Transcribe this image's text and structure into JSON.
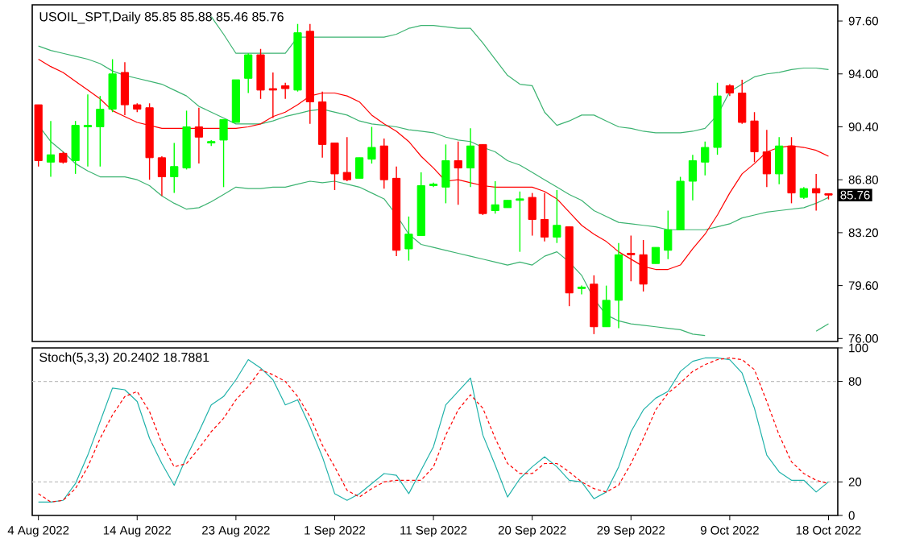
{
  "chart_data": [
    {
      "type": "candlestick",
      "title": "USOIL_SPT,Daily 85.85 85.88 85.46 85.76",
      "categories": [
        null,
        null,
        null,
        null,
        null,
        null,
        null,
        null,
        null,
        null,
        null,
        null,
        null,
        null,
        null,
        null,
        null,
        null,
        null,
        null,
        null,
        null,
        null,
        null,
        null,
        null,
        null,
        null,
        null,
        null,
        null,
        null,
        null,
        null,
        null,
        null,
        null,
        null,
        null,
        null,
        null,
        null,
        null,
        null,
        null,
        null,
        null,
        null,
        null,
        null,
        null,
        null,
        null,
        null,
        null,
        null,
        null,
        null,
        null,
        null,
        null,
        null,
        null,
        null,
        null
      ],
      "ohlc": [
        [
          91.9,
          91.9,
          87.7,
          88.1
        ],
        [
          88.0,
          90.8,
          87.0,
          88.5
        ],
        [
          88.6,
          88.7,
          87.9,
          88.0
        ],
        [
          88.1,
          90.8,
          87.2,
          90.5
        ],
        [
          90.4,
          92.6,
          87.7,
          90.5
        ],
        [
          90.4,
          92.5,
          87.7,
          91.6
        ],
        [
          91.6,
          95.0,
          91.4,
          94.0
        ],
        [
          94.1,
          94.8,
          91.2,
          91.9
        ],
        [
          91.9,
          92.0,
          91.4,
          91.6
        ],
        [
          91.7,
          92.0,
          86.8,
          88.3
        ],
        [
          88.3,
          88.4,
          85.7,
          87.0
        ],
        [
          87.0,
          89.3,
          85.9,
          87.7
        ],
        [
          87.6,
          91.5,
          87.5,
          90.4
        ],
        [
          90.4,
          91.7,
          87.9,
          89.7
        ],
        [
          89.3,
          89.5,
          89.1,
          89.4
        ],
        [
          89.5,
          90.9,
          86.3,
          90.9
        ],
        [
          90.7,
          93.6,
          90.7,
          93.6
        ],
        [
          93.7,
          95.4,
          92.7,
          95.3
        ],
        [
          95.3,
          95.7,
          92.3,
          92.9
        ],
        [
          93.0,
          94.1,
          91.0,
          92.9
        ],
        [
          93.2,
          93.4,
          92.3,
          93.0
        ],
        [
          92.9,
          97.4,
          92.8,
          96.8
        ],
        [
          96.9,
          97.4,
          90.6,
          92.1
        ],
        [
          92.1,
          92.8,
          88.3,
          89.2
        ],
        [
          89.3,
          89.3,
          86.1,
          87.2
        ],
        [
          87.3,
          89.7,
          86.7,
          86.8
        ],
        [
          86.9,
          88.3,
          86.9,
          88.3
        ],
        [
          88.2,
          90.4,
          87.9,
          89.0
        ],
        [
          89.1,
          89.6,
          86.2,
          86.8
        ],
        [
          86.9,
          87.7,
          81.6,
          82.0
        ],
        [
          82.1,
          84.3,
          81.3,
          83.1
        ],
        [
          83.0,
          87.3,
          83.0,
          86.4
        ],
        [
          86.4,
          86.6,
          86.3,
          86.5
        ],
        [
          86.3,
          89.2,
          85.2,
          88.1
        ],
        [
          88.1,
          89.4,
          85.1,
          87.6
        ],
        [
          87.6,
          90.3,
          86.3,
          89.1
        ],
        [
          89.2,
          89.2,
          84.4,
          84.5
        ],
        [
          84.7,
          86.7,
          84.5,
          85.1
        ],
        [
          84.9,
          85.4,
          84.9,
          85.4
        ],
        [
          85.4,
          86.0,
          81.9,
          85.5
        ],
        [
          85.6,
          85.9,
          83.0,
          84.1
        ],
        [
          84.1,
          85.9,
          82.6,
          82.9
        ],
        [
          82.9,
          86.1,
          82.5,
          83.7
        ],
        [
          83.6,
          83.6,
          78.2,
          79.1
        ],
        [
          79.4,
          79.6,
          79.0,
          79.5
        ],
        [
          79.7,
          80.3,
          76.3,
          76.8
        ],
        [
          76.8,
          79.6,
          76.8,
          78.6
        ],
        [
          78.6,
          82.5,
          76.7,
          81.7
        ],
        [
          81.8,
          83.0,
          79.9,
          81.7
        ],
        [
          81.7,
          82.7,
          79.2,
          79.7
        ],
        [
          81.1,
          82.2,
          81.1,
          82.2
        ],
        [
          82.0,
          84.7,
          81.4,
          83.4
        ],
        [
          83.4,
          87.0,
          83.4,
          86.7
        ],
        [
          86.7,
          88.5,
          85.4,
          88.1
        ],
        [
          88.0,
          89.4,
          87.1,
          89.0
        ],
        [
          89.0,
          93.4,
          88.5,
          92.5
        ],
        [
          93.2,
          93.3,
          92.5,
          92.7
        ],
        [
          92.7,
          93.6,
          90.6,
          90.7
        ],
        [
          90.8,
          91.4,
          88.0,
          88.7
        ],
        [
          88.7,
          90.2,
          86.3,
          87.2
        ],
        [
          87.2,
          89.7,
          86.5,
          89.1
        ],
        [
          89.1,
          89.7,
          85.2,
          85.9
        ],
        [
          85.6,
          86.3,
          85.5,
          86.2
        ],
        [
          86.2,
          87.2,
          84.7,
          85.9
        ],
        [
          85.85,
          85.88,
          85.46,
          85.76
        ]
      ],
      "colors": [
        "#ff0000",
        "#00ff00",
        "#ff0000",
        "#00ff00",
        "#00ff00",
        "#00ff00",
        "#00ff00",
        "#ff0000",
        "#ff0000",
        "#ff0000",
        "#ff0000",
        "#00ff00",
        "#00ff00",
        "#ff0000",
        "#00ff00",
        "#00ff00",
        "#00ff00",
        "#00ff00",
        "#ff0000",
        "#ff0000",
        "#ff0000",
        "#00ff00",
        "#ff0000",
        "#ff0000",
        "#ff0000",
        "#ff0000",
        "#00ff00",
        "#00ff00",
        "#ff0000",
        "#ff0000",
        "#00ff00",
        "#00ff00",
        "#00ff00",
        "#00ff00",
        "#ff0000",
        "#00ff00",
        "#ff0000",
        "#00ff00",
        "#00ff00",
        "#00ff00",
        "#ff0000",
        "#ff0000",
        "#00ff00",
        "#ff0000",
        "#00ff00",
        "#ff0000",
        "#00ff00",
        "#00ff00",
        "#ff0000",
        "#ff0000",
        "#00ff00",
        "#00ff00",
        "#00ff00",
        "#00ff00",
        "#00ff00",
        "#00ff00",
        "#ff0000",
        "#ff0000",
        "#ff0000",
        "#ff0000",
        "#00ff00",
        "#ff0000",
        "#00ff00",
        "#ff0000",
        "#ff0000"
      ],
      "series": [
        {
          "type": "line",
          "color": "#3cb371",
          "values": [
            null,
            null,
            null,
            null,
            null,
            null,
            null,
            null,
            null,
            null,
            null,
            null,
            null,
            null,
            97.9,
            96.7,
            95.4,
            95.4,
            95.4,
            95.4,
            95.4,
            96.5,
            96.5,
            96.5,
            96.5,
            96.5,
            96.5,
            96.5,
            96.5,
            96.7,
            97.1,
            97.3,
            97.3,
            97.2,
            97.1,
            97.1,
            96.1,
            95.0,
            93.9,
            93.3,
            93.2,
            91.4,
            90.5,
            90.8,
            91.2,
            91.2,
            90.8,
            90.4,
            90.3,
            90.1,
            90.0,
            90.0,
            90.0,
            90.1,
            90.3,
            91.2,
            92.8,
            93.3,
            93.8,
            94.0,
            94.1,
            94.3,
            94.4,
            94.4,
            94.3
          ]
        },
        {
          "type": "line",
          "color": "#3cb371",
          "values": [
            95.9,
            95.6,
            95.4,
            95.2,
            95.0,
            94.7,
            94.2,
            93.9,
            93.7,
            93.5,
            93.3,
            92.9,
            92.5,
            91.8,
            91.4,
            91.0,
            90.6,
            90.6,
            90.6,
            90.8,
            91.1,
            91.3,
            91.5,
            91.6,
            91.4,
            91.2,
            90.8,
            90.6,
            90.5,
            90.4,
            90.2,
            90.1,
            90.0,
            89.7,
            89.5,
            89.4,
            89.0,
            88.7,
            88.1,
            87.8,
            87.3,
            86.8,
            86.3,
            85.8,
            85.4,
            84.7,
            84.3,
            83.9,
            83.8,
            83.7,
            83.6,
            83.4,
            83.4,
            83.4,
            83.4,
            83.6,
            83.8,
            84.2,
            84.4,
            84.6,
            84.7,
            84.8,
            84.9,
            85.2,
            85.6
          ]
        },
        {
          "type": "line",
          "color": "#ff0000",
          "values": [
            95.0,
            94.5,
            94.1,
            93.5,
            92.9,
            92.3,
            91.5,
            91.1,
            90.7,
            90.5,
            90.3,
            90.3,
            90.3,
            90.3,
            90.3,
            90.3,
            90.3,
            90.4,
            90.6,
            91.1,
            91.4,
            91.9,
            92.5,
            92.7,
            92.7,
            92.5,
            92.1,
            91.2,
            90.6,
            90.1,
            89.4,
            88.4,
            87.6,
            86.7,
            86.8,
            86.6,
            86.4,
            86.3,
            86.3,
            86.3,
            86.3,
            86.0,
            85.5,
            84.6,
            83.7,
            83.1,
            82.6,
            81.9,
            81.4,
            80.9,
            80.7,
            80.7,
            81.0,
            82.1,
            83.1,
            84.4,
            85.9,
            87.2,
            87.9,
            88.7,
            89.0,
            89.1,
            89.0,
            88.8,
            88.4
          ]
        },
        {
          "type": "line",
          "color": "#3cb371",
          "values": [
            90.5,
            89.4,
            88.7,
            87.9,
            87.4,
            87.0,
            87.0,
            87.0,
            86.8,
            86.4,
            85.7,
            85.2,
            84.8,
            84.9,
            85.3,
            85.8,
            86.3,
            86.2,
            86.2,
            86.3,
            86.3,
            86.5,
            86.7,
            86.6,
            86.7,
            86.5,
            86.3,
            85.9,
            85.5,
            84.4,
            83.1,
            82.4,
            82.2,
            82.0,
            81.8,
            81.6,
            81.4,
            81.2,
            81.0,
            81.2,
            81.0,
            81.6,
            81.9,
            81.2,
            80.3,
            78.7,
            77.6,
            77.2,
            77.0,
            76.9,
            76.8,
            76.7,
            76.6,
            76.3,
            76.2,
            null,
            null,
            null,
            null,
            null,
            null,
            null,
            null,
            76.5,
            77.0
          ]
        }
      ],
      "ylim": [
        75.8,
        98.7
      ],
      "yticks": [
        {
          "value": 76,
          "label": "76.00"
        },
        {
          "value": 79.6,
          "label": "79.60"
        },
        {
          "value": 83.2,
          "label": "83.20"
        },
        {
          "value": 86.8,
          "label": "86.80"
        },
        {
          "value": 90.4,
          "label": "90.40"
        },
        {
          "value": 94,
          "label": "94.00"
        },
        {
          "value": 97.6,
          "label": "97.60"
        }
      ],
      "annotations": [
        {
          "text": "85.76",
          "y": 85.76
        }
      ]
    },
    {
      "type": "line",
      "title": "Stoch(5,3,3) 20.2402 18.7881",
      "categories": [
        "4 Aug 2022",
        null,
        null,
        null,
        null,
        null,
        null,
        null,
        "14 Aug 2022",
        null,
        null,
        null,
        null,
        null,
        null,
        null,
        "23 Aug 2022",
        null,
        null,
        null,
        null,
        null,
        null,
        null,
        "1 Sep 2022",
        null,
        null,
        null,
        null,
        null,
        null,
        null,
        "11 Sep 2022",
        null,
        null,
        null,
        null,
        null,
        null,
        null,
        "20 Sep 2022",
        null,
        null,
        null,
        null,
        null,
        null,
        null,
        "29 Sep 2022",
        null,
        null,
        null,
        null,
        null,
        null,
        null,
        "9 Oct 2022",
        null,
        null,
        null,
        null,
        null,
        null,
        null,
        "18 Oct 2022"
      ],
      "series": [
        {
          "color": "#20b2aa",
          "values": [
            8,
            8,
            9,
            19,
            36,
            56,
            76,
            75,
            68,
            46,
            31,
            18,
            35,
            50,
            66,
            71,
            81,
            93,
            88,
            81,
            66,
            69,
            53,
            35,
            13,
            9,
            13,
            19,
            25,
            24,
            13,
            27,
            41,
            66,
            74,
            82,
            48,
            30,
            11,
            22,
            29,
            35,
            29,
            21,
            20,
            10,
            14,
            29,
            50,
            63,
            70,
            74,
            86,
            92,
            94,
            94,
            93,
            85,
            64,
            36,
            26,
            21,
            21,
            14,
            20
          ]
        },
        {
          "color": "#ff0000",
          "line_style": "dashed",
          "values": [
            13,
            8,
            9,
            16,
            29,
            46,
            60,
            71,
            74,
            62,
            43,
            29,
            31,
            40,
            50,
            58,
            69,
            77,
            87,
            84,
            80,
            71,
            59,
            42,
            29,
            15,
            11,
            16,
            20,
            21,
            21,
            21,
            29,
            48,
            63,
            72,
            64,
            46,
            31,
            25,
            25,
            31,
            31,
            26,
            20,
            16,
            14,
            18,
            31,
            46,
            63,
            73,
            79,
            86,
            90,
            93,
            94,
            93,
            87,
            68,
            48,
            32,
            25,
            21,
            19
          ]
        }
      ],
      "ylim": [
        0,
        100
      ],
      "yticks": [
        0,
        20,
        80,
        100
      ],
      "ref_lines": [
        {
          "axis": "y",
          "value": 80,
          "color": "#c0c0c0",
          "line_style": "dashed"
        },
        {
          "axis": "y",
          "value": 20,
          "color": "#c0c0c0",
          "line_style": "dashed"
        }
      ]
    }
  ]
}
